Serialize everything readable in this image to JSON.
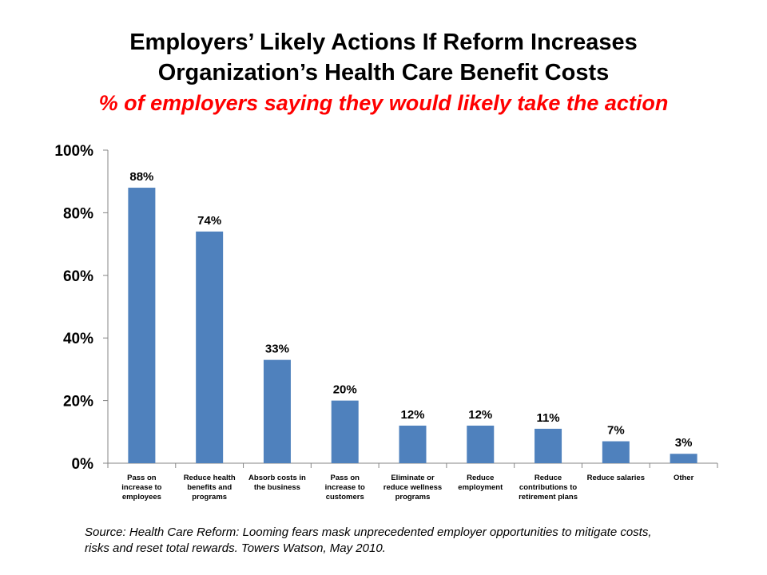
{
  "header": {
    "title_line1": "Employers’ Likely Actions If Reform Increases",
    "title_line2": "Organization’s Health Care Benefit Costs",
    "subtitle": "% of employers saying they would likely take the action"
  },
  "chart_data": {
    "type": "bar",
    "title": "Employers’ Likely Actions If Reform Increases Organization’s Health Care Benefit Costs",
    "subtitle": "% of employers saying they would likely take the action",
    "categories": [
      [
        "Pass on",
        "increase to",
        "employees"
      ],
      [
        "Reduce health",
        "benefits and",
        "programs"
      ],
      [
        "Absorb costs in",
        "the business"
      ],
      [
        "Pass on",
        "increase to",
        "customers"
      ],
      [
        "Eliminate or",
        "reduce wellness",
        "programs"
      ],
      [
        "Reduce",
        "employment"
      ],
      [
        "Reduce",
        "contributions to",
        "retirement plans"
      ],
      [
        "Reduce salaries"
      ],
      [
        "Other"
      ]
    ],
    "values": [
      88,
      74,
      33,
      20,
      12,
      12,
      11,
      7,
      3
    ],
    "data_labels": [
      "88%",
      "74%",
      "33%",
      "20%",
      "12%",
      "12%",
      "11%",
      "7%",
      "3%"
    ],
    "ylim": [
      0,
      100
    ],
    "yticks": [
      0,
      20,
      40,
      60,
      80,
      100
    ],
    "ytick_labels": [
      "0%",
      "20%",
      "40%",
      "60%",
      "80%",
      "100%"
    ],
    "xlabel": "",
    "ylabel": "",
    "grid": false,
    "legend": "none",
    "bar_color": "#4f81bd"
  },
  "footer": {
    "source_line1": "Source: Health Care Reform: Looming fears mask unprecedented employer opportunities to mitigate costs,",
    "source_line2": "risks and reset total rewards.  Towers Watson, May 2010."
  }
}
